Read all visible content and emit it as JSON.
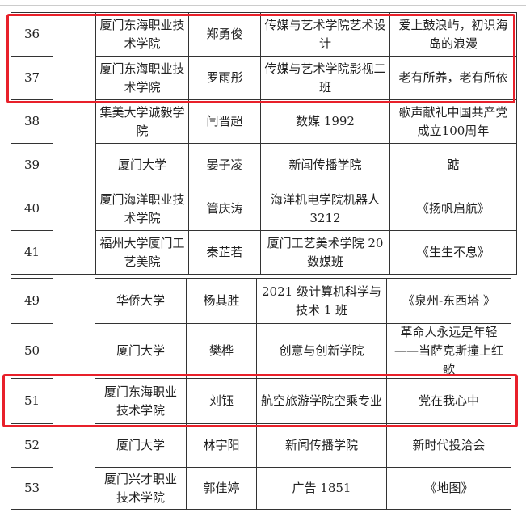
{
  "highlight_color": "#e8202a",
  "upper_rows": [
    {
      "no": "36",
      "school": "厦门东海职业技术学院",
      "name": "郑勇俊",
      "major": "传媒与艺术学院艺术设计",
      "work": "爱上鼓浪屿，初识海岛的浪漫",
      "highlighted": true
    },
    {
      "no": "37",
      "school": "厦门东海职业技术学院",
      "name": "罗雨彤",
      "major": "传媒与艺术学院影视二班",
      "work": "老有所养，老有所依",
      "highlighted": true
    },
    {
      "no": "38",
      "school": "集美大学诚毅学院",
      "name": "闫晋超",
      "major": "数媒 1992",
      "work": "歌声献礼中国共产党成立100周年",
      "highlighted": false
    },
    {
      "no": "39",
      "school": "厦门大学",
      "name": "晏子凌",
      "major": "新闻传播学院",
      "work": "踮",
      "highlighted": false
    },
    {
      "no": "40",
      "school": "厦门海洋职业技术学院",
      "name": "管庆涛",
      "major": "海洋机电学院机器人 3212",
      "work": "《扬帆启航》",
      "highlighted": false
    },
    {
      "no": "41",
      "school": "福州大学厦门工艺美院",
      "name": "秦芷若",
      "major": "厦门工艺美术学院 20 数媒班",
      "work": "《生生不息》",
      "highlighted": false
    }
  ],
  "lower_rows": [
    {
      "no": "49",
      "school": "华侨大学",
      "name": "杨其胜",
      "major": "2021 级计算机科学与技术 1 班",
      "work": "《泉州-东西塔 》",
      "highlighted": false
    },
    {
      "no": "50",
      "school": "厦门大学",
      "name": "樊桦",
      "major": "创意与创新学院",
      "work": "革命人永远是年轻——当萨克斯撞上红歌",
      "highlighted": false
    },
    {
      "no": "51",
      "school": "厦门东海职业技术学院",
      "name": "刘钰",
      "major": "航空旅游学院空乘专业",
      "work": "党在我心中",
      "highlighted": true
    },
    {
      "no": "52",
      "school": "厦门大学",
      "name": "林宇阳",
      "major": "新闻传播学院",
      "work": "新时代投洽会",
      "highlighted": false
    },
    {
      "no": "53",
      "school": "厦门兴才职业技术学院",
      "name": "郭佳婷",
      "major": "广告 1851",
      "work": "《地图》",
      "highlighted": false
    }
  ]
}
